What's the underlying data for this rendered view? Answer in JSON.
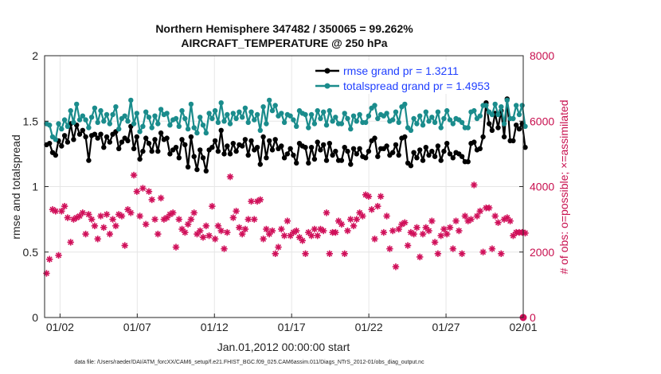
{
  "chart_data": {
    "type": "line",
    "title": "Northern Hemisphere 347482 / 350065 = 99.262%",
    "subtitle": "AIRCRAFT_TEMPERATURE @ 250 hPa",
    "xlabel": "Jan.01,2012 00:00:00 start",
    "ylabel_left": "rmse and totalspread",
    "ylabel_right": "# of obs: o=possible; ×=assimilated",
    "footer": "data file: /Users/raeder/DAI/ATM_forcXX/CAM6_setup/f.e21.FHIST_BGC.f09_025.CAM6assim.011/Diags_NTrS_2012-01/obs_diag_output.nc",
    "x_tick_labels": [
      "01/02",
      "01/07",
      "01/12",
      "01/17",
      "01/22",
      "01/27",
      "02/01"
    ],
    "x_tick_days": [
      1,
      6,
      11,
      16,
      21,
      26,
      31
    ],
    "x_range_days": [
      0,
      31
    ],
    "ylim_left": [
      0,
      2
    ],
    "y_ticks_left": [
      "0",
      "0.5",
      "1",
      "1.5",
      "2"
    ],
    "ylim_right": [
      0,
      8000
    ],
    "y_ticks_right": [
      "0",
      "2000",
      "4000",
      "6000",
      "8000"
    ],
    "grid": true,
    "legend_position": "top-right",
    "series": [
      {
        "name": "rmse grand pr = 1.3211",
        "axis": "left",
        "color": "#000000",
        "values": [
          1.32,
          1.33,
          1.26,
          1.24,
          1.35,
          1.31,
          1.39,
          1.34,
          1.48,
          1.36,
          1.47,
          1.4,
          1.43,
          1.38,
          1.2,
          1.39,
          1.4,
          1.37,
          1.4,
          1.3,
          1.38,
          1.34,
          1.4,
          1.42,
          1.29,
          1.34,
          1.37,
          1.35,
          1.46,
          1.29,
          1.38,
          1.21,
          1.27,
          1.37,
          1.33,
          1.27,
          1.36,
          1.27,
          1.41,
          1.36,
          1.37,
          1.25,
          1.28,
          1.3,
          1.22,
          1.36,
          1.32,
          1.15,
          1.38,
          1.23,
          1.13,
          1.28,
          1.22,
          1.12,
          1.28,
          1.3,
          1.35,
          1.27,
          1.43,
          1.25,
          1.31,
          1.25,
          1.33,
          1.27,
          1.32,
          1.31,
          1.36,
          1.24,
          1.35,
          1.28,
          1.3,
          1.17,
          1.38,
          1.22,
          1.35,
          1.28,
          1.36,
          1.29,
          1.31,
          1.22,
          1.25,
          1.29,
          1.24,
          1.18,
          1.33,
          1.31,
          1.3,
          1.18,
          1.3,
          1.21,
          1.34,
          1.28,
          1.32,
          1.2,
          1.33,
          1.24,
          1.27,
          1.2,
          1.2,
          1.3,
          1.27,
          1.17,
          1.29,
          1.25,
          1.29,
          1.23,
          1.22,
          1.27,
          1.35,
          1.37,
          1.23,
          1.29,
          1.29,
          1.31,
          1.24,
          1.26,
          1.32,
          1.24,
          1.37,
          1.38,
          1.18,
          1.16,
          1.26,
          1.22,
          1.28,
          1.2,
          1.3,
          1.24,
          1.27,
          1.23,
          1.31,
          1.2,
          1.27,
          1.33,
          1.25,
          1.22,
          1.26,
          1.25,
          1.23,
          1.19,
          1.19,
          1.33,
          1.34,
          1.28,
          1.29,
          1.38,
          1.64,
          1.48,
          1.43,
          1.56,
          1.45,
          1.58,
          1.38,
          1.67,
          1.35,
          1.35,
          1.47,
          1.44,
          1.48,
          1.3
        ]
      },
      {
        "name": "totalspread grand pr = 1.4953",
        "axis": "left",
        "color": "#1a8c8c",
        "values": [
          1.48,
          1.47,
          1.38,
          1.36,
          1.48,
          1.44,
          1.51,
          1.46,
          1.58,
          1.49,
          1.63,
          1.51,
          1.54,
          1.51,
          1.45,
          1.53,
          1.6,
          1.49,
          1.58,
          1.5,
          1.55,
          1.48,
          1.55,
          1.61,
          1.44,
          1.52,
          1.54,
          1.5,
          1.66,
          1.48,
          1.56,
          1.42,
          1.46,
          1.57,
          1.53,
          1.45,
          1.54,
          1.48,
          1.59,
          1.55,
          1.56,
          1.47,
          1.51,
          1.52,
          1.46,
          1.58,
          1.52,
          1.44,
          1.63,
          1.45,
          1.41,
          1.53,
          1.47,
          1.41,
          1.56,
          1.52,
          1.58,
          1.49,
          1.64,
          1.5,
          1.55,
          1.48,
          1.56,
          1.52,
          1.57,
          1.53,
          1.6,
          1.49,
          1.57,
          1.51,
          1.55,
          1.43,
          1.61,
          1.48,
          1.66,
          1.58,
          1.62,
          1.54,
          1.56,
          1.49,
          1.55,
          1.54,
          1.51,
          1.46,
          1.58,
          1.56,
          1.55,
          1.45,
          1.55,
          1.48,
          1.58,
          1.52,
          1.57,
          1.47,
          1.58,
          1.5,
          1.53,
          1.48,
          1.48,
          1.56,
          1.52,
          1.44,
          1.54,
          1.5,
          1.55,
          1.49,
          1.49,
          1.54,
          1.6,
          1.62,
          1.52,
          1.55,
          1.54,
          1.56,
          1.5,
          1.51,
          1.57,
          1.49,
          1.61,
          1.63,
          1.45,
          1.43,
          1.52,
          1.48,
          1.54,
          1.47,
          1.57,
          1.5,
          1.53,
          1.49,
          1.57,
          1.45,
          1.52,
          1.58,
          1.51,
          1.48,
          1.52,
          1.51,
          1.49,
          1.45,
          1.45,
          1.57,
          1.58,
          1.52,
          1.54,
          1.62,
          1.62,
          1.57,
          1.55,
          1.63,
          1.55,
          1.61,
          1.48,
          1.66,
          1.52,
          1.52,
          1.62,
          1.55,
          1.62,
          1.46
        ]
      },
      {
        "name": "# of obs assimilated",
        "axis": "right",
        "color": "#d0105a",
        "marker": "asterisk",
        "values": [
          1350,
          1780,
          3300,
          3250,
          1900,
          3250,
          3400,
          3050,
          2300,
          3000,
          3050,
          3100,
          3200,
          2550,
          3150,
          3000,
          2800,
          2400,
          3100,
          2750,
          3150,
          2550,
          3000,
          2800,
          3150,
          3100,
          2200,
          3300,
          3200,
          4350,
          3850,
          3100,
          3950,
          2850,
          3850,
          3600,
          3000,
          2550,
          3650,
          3000,
          3050,
          3150,
          3200,
          2150,
          3000,
          2700,
          2600,
          2850,
          3000,
          3200,
          2550,
          2650,
          2450,
          2800,
          2500,
          3400,
          2400,
          2800,
          2650,
          2100,
          2600,
          4300,
          3050,
          3250,
          2750,
          2550,
          2700,
          3000,
          3550,
          3000,
          3550,
          3600,
          2400,
          2700,
          2550,
          2650,
          1950,
          2150,
          2700,
          2500,
          2950,
          2500,
          2600,
          2650,
          2450,
          2350,
          1950,
          2600,
          2500,
          2700,
          2500,
          2700,
          2650,
          3200,
          1950,
          2600,
          2600,
          2950,
          2850,
          1950,
          2650,
          3000,
          2800,
          3000,
          3200,
          3100,
          3750,
          3700,
          3300,
          2400,
          3400,
          3700,
          2600,
          3100,
          2100,
          2650,
          1550,
          2700,
          2850,
          2900,
          2200,
          2600,
          2550,
          2750,
          1850,
          2550,
          2750,
          2650,
          2950,
          2300,
          1950,
          2500,
          2700,
          2550,
          2750,
          2100,
          2950,
          2650,
          1950,
          3100,
          2950,
          3000,
          4050,
          3100,
          3250,
          2000,
          3350,
          3350,
          2100,
          3100,
          2900,
          1950,
          3000,
          3050,
          2950,
          2500,
          2600,
          2600,
          2600,
          2580
        ]
      },
      {
        "name": "# of obs possible (final point)",
        "axis": "right",
        "color": "#d0105a",
        "marker": "circle",
        "x_days": [
          31.0
        ],
        "values": [
          0
        ]
      }
    ]
  }
}
